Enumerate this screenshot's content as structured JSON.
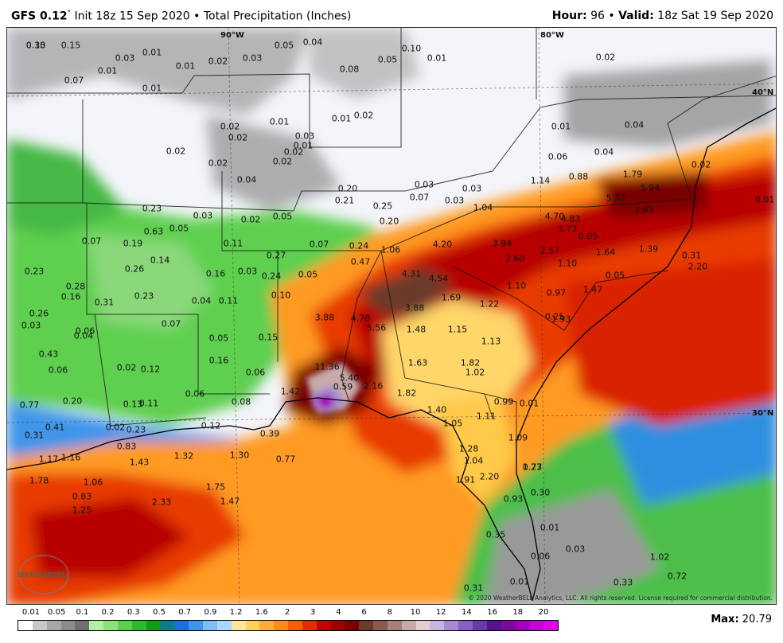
{
  "header": {
    "model": "GFS 0.12",
    "degree": "°",
    "init": "Init 18z 15 Sep 2020",
    "sep": "•",
    "product": "Total Precipitation (Inches)",
    "hour_label": "Hour:",
    "hour_value": "96",
    "valid_label": "Valid:",
    "valid_value": "18z Sat 19 Sep 2020"
  },
  "coords": {
    "lon90": "90°W",
    "lon80": "80°W",
    "lat40": "40°N",
    "lat30": "30°N"
  },
  "copyright": "© 2020 WeatherBELL Analytics, LLC. All rights reserved. License required for commercial distribution.",
  "logo_text": "WEATHERBELL",
  "map_values": [
    "0.15",
    "0.15",
    "0.03",
    "0.01",
    "0.01",
    "0.02",
    "0.03",
    "0.05",
    "0.04",
    "0.10",
    "0.05",
    "0.01",
    "0.02",
    "0.07",
    "0.01",
    "0.08",
    "0.01",
    "0.01",
    "0.02",
    "0.02",
    "0.02",
    "0.01",
    "0.01",
    "0.03",
    "0.02",
    "0.02",
    "0.02",
    "0.02",
    "0.04",
    "0.03",
    "0.01",
    "0.04",
    "0.06",
    "0.04",
    "0.88",
    "1.79",
    "5.32",
    "5.94",
    "0.20",
    "0.21",
    "0.25",
    "0.03",
    "0.07",
    "0.03",
    "1.14",
    "0.23",
    "0.03",
    "0.02",
    "0.05",
    "0.20",
    "1.04",
    "4.70",
    "4.83",
    "3.63",
    "3.73",
    "0.07",
    "0.19",
    "0.63",
    "0.05",
    "0.11",
    "0.07",
    "0.24",
    "1.06",
    "4.20",
    "3.94",
    "2.57",
    "1.64",
    "1.39",
    "2.60",
    "0.23",
    "0.14",
    "0.27",
    "0.47",
    "0.26",
    "0.16",
    "0.03",
    "0.24",
    "0.05",
    "4.31",
    "4.54",
    "1.10",
    "1.10",
    "0.28",
    "0.16",
    "0.31",
    "0.23",
    "0.04",
    "0.11",
    "0.10",
    "1.69",
    "1.22",
    "0.97",
    "1.47",
    "0.26",
    "3.88",
    "4.78",
    "3.88",
    "1.93",
    "0.03",
    "0.06",
    "0.04",
    "0.07",
    "0.05",
    "0.15",
    "5.56",
    "1.48",
    "1.15",
    "1.13",
    "0.43",
    "0.06",
    "0.02",
    "0.12",
    "0.16",
    "11.36",
    "1.63",
    "1.82",
    "1.02",
    "5.40",
    "0.59",
    "2.16",
    "1.82",
    "0.06",
    "0.06",
    "0.77",
    "0.20",
    "0.13",
    "0.11",
    "0.08",
    "1.42",
    "0.99",
    "1.40",
    "1.11",
    "0.41",
    "0.31",
    "0.02",
    "0.23",
    "0.12",
    "0.39",
    "1.05",
    "1.09",
    "0.83",
    "1.32",
    "1.30",
    "0.77",
    "1.17",
    "1.16",
    "1.43",
    "1.28",
    "1.04",
    "1.78",
    "1.06",
    "1.75",
    "2.20",
    "0.83",
    "1.47",
    "2.33",
    "1.25",
    "0.30",
    "0.01",
    "0.35",
    "0.06",
    "0.03",
    "1.02",
    "0.72",
    "0.33",
    "0.31",
    "0.01",
    "0.23",
    "0.01",
    "0.05",
    "0.01",
    "0.02",
    "0.05",
    "0.25",
    "1.77",
    "1.91",
    "0.93",
    "2.20",
    "0.31",
    "0.30"
  ],
  "legend": {
    "labels": [
      "0.01",
      "0.05",
      "0.1",
      "0.2",
      "0.3",
      "0.5",
      "0.7",
      "0.9",
      "1.2",
      "1.6",
      "2",
      "3",
      "4",
      "6",
      "8",
      "10",
      "12",
      "14",
      "16",
      "18",
      "20"
    ],
    "colors": [
      "#ffffff",
      "#c8c8c8",
      "#a8a8a8",
      "#8c8c8c",
      "#707070",
      "#b4f0a0",
      "#8ee07a",
      "#5ccf4e",
      "#2eb82a",
      "#139a18",
      "#0e7a8a",
      "#1b6fd6",
      "#3f95ea",
      "#7cbef5",
      "#a7d8fa",
      "#ffe59a",
      "#ffcf60",
      "#ffae3c",
      "#ff8c1c",
      "#ff5a00",
      "#e82a00",
      "#c60000",
      "#9e0000",
      "#7a0000",
      "#6a3a2a",
      "#8a5a4a",
      "#a8807a",
      "#c8aaaa",
      "#e2d0d0",
      "#c8b4e0",
      "#a48ad0",
      "#8460c0",
      "#6a3aa8",
      "#56138e",
      "#7a0a9c",
      "#a000b8",
      "#c800d0",
      "#e600e0"
    ]
  },
  "max": {
    "label": "Max:",
    "value": "20.79"
  }
}
